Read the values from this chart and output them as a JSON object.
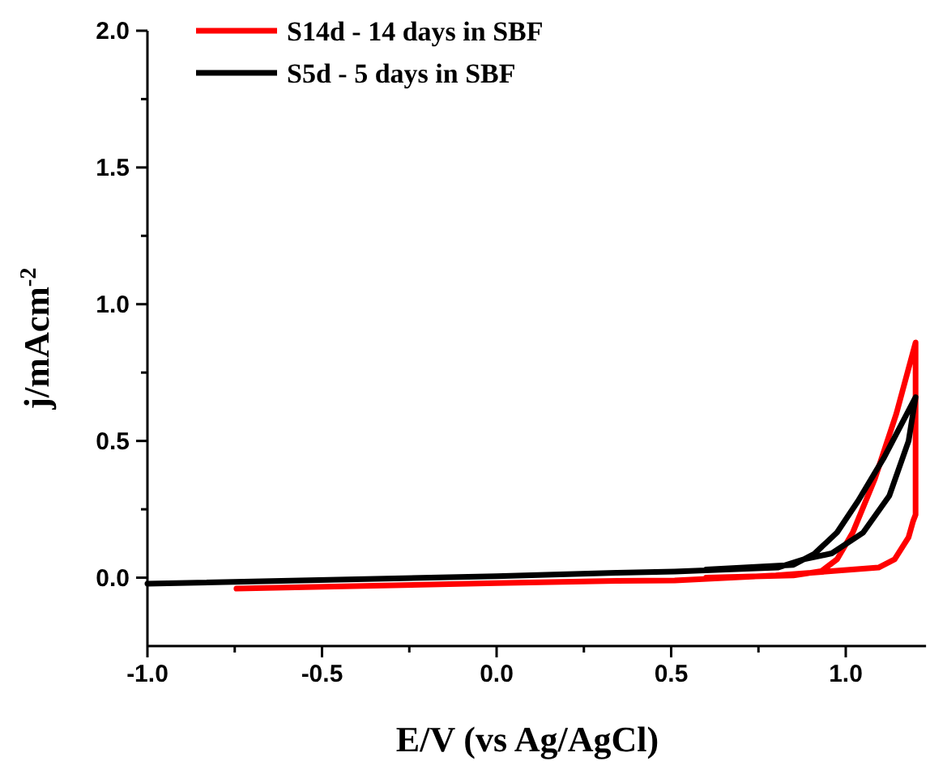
{
  "chart_data": {
    "type": "line",
    "xlabel": "E/V (vs Ag/AgCl)",
    "ylabel": "j/mAcm$^{-2}$",
    "xlim": [
      -1.0,
      1.23
    ],
    "ylim": [
      -0.25,
      2.0
    ],
    "xticks": [
      {
        "value": -1.0,
        "label": "-1.0"
      },
      {
        "value": -0.75,
        "label": null
      },
      {
        "value": -0.5,
        "label": "-0.5"
      },
      {
        "value": -0.25,
        "label": null
      },
      {
        "value": 0.0,
        "label": "0.0"
      },
      {
        "value": 0.25,
        "label": null
      },
      {
        "value": 0.5,
        "label": "0.5"
      },
      {
        "value": 0.75,
        "label": null
      },
      {
        "value": 1.0,
        "label": "1.0"
      }
    ],
    "yticks": [
      {
        "value": 0.0,
        "label": "0.0"
      },
      {
        "value": 0.25,
        "label": null
      },
      {
        "value": 0.5,
        "label": "0.5"
      },
      {
        "value": 0.75,
        "label": null
      },
      {
        "value": 1.0,
        "label": "1.0"
      },
      {
        "value": 1.25,
        "label": null
      },
      {
        "value": 1.5,
        "label": "1.5"
      },
      {
        "value": 1.75,
        "label": null
      },
      {
        "value": 2.0,
        "label": "2.0"
      }
    ],
    "legend": "top left",
    "grid": false,
    "marker": "none",
    "line_style": "solid",
    "series": [
      {
        "name": "S14d - 14 days in SBF",
        "color": "#ff0000",
        "x": [
          -0.745,
          0.0,
          0.343,
          0.51,
          0.8,
          1.094,
          1.14,
          1.18,
          1.193,
          1.2,
          1.2,
          1.145,
          1.083,
          1.02,
          0.975,
          0.93,
          0.85,
          0.6
        ],
        "values": [
          -0.04,
          -0.02,
          -0.012,
          -0.01,
          0.008,
          0.037,
          0.067,
          0.148,
          0.207,
          0.23,
          0.86,
          0.6,
          0.36,
          0.165,
          0.067,
          0.024,
          0.008,
          0.0
        ]
      },
      {
        "name": "S5d - 5 days in SBF",
        "color": "#000000",
        "x": [
          -1.0,
          0.0,
          0.343,
          0.51,
          0.805,
          0.88,
          0.96,
          1.05,
          1.125,
          1.18,
          1.2,
          1.11,
          1.035,
          0.975,
          0.91,
          0.85,
          0.6
        ],
        "values": [
          -0.022,
          0.005,
          0.018,
          0.022,
          0.037,
          0.067,
          0.089,
          0.165,
          0.3,
          0.5,
          0.66,
          0.44,
          0.28,
          0.165,
          0.087,
          0.047,
          0.03
        ]
      }
    ]
  }
}
